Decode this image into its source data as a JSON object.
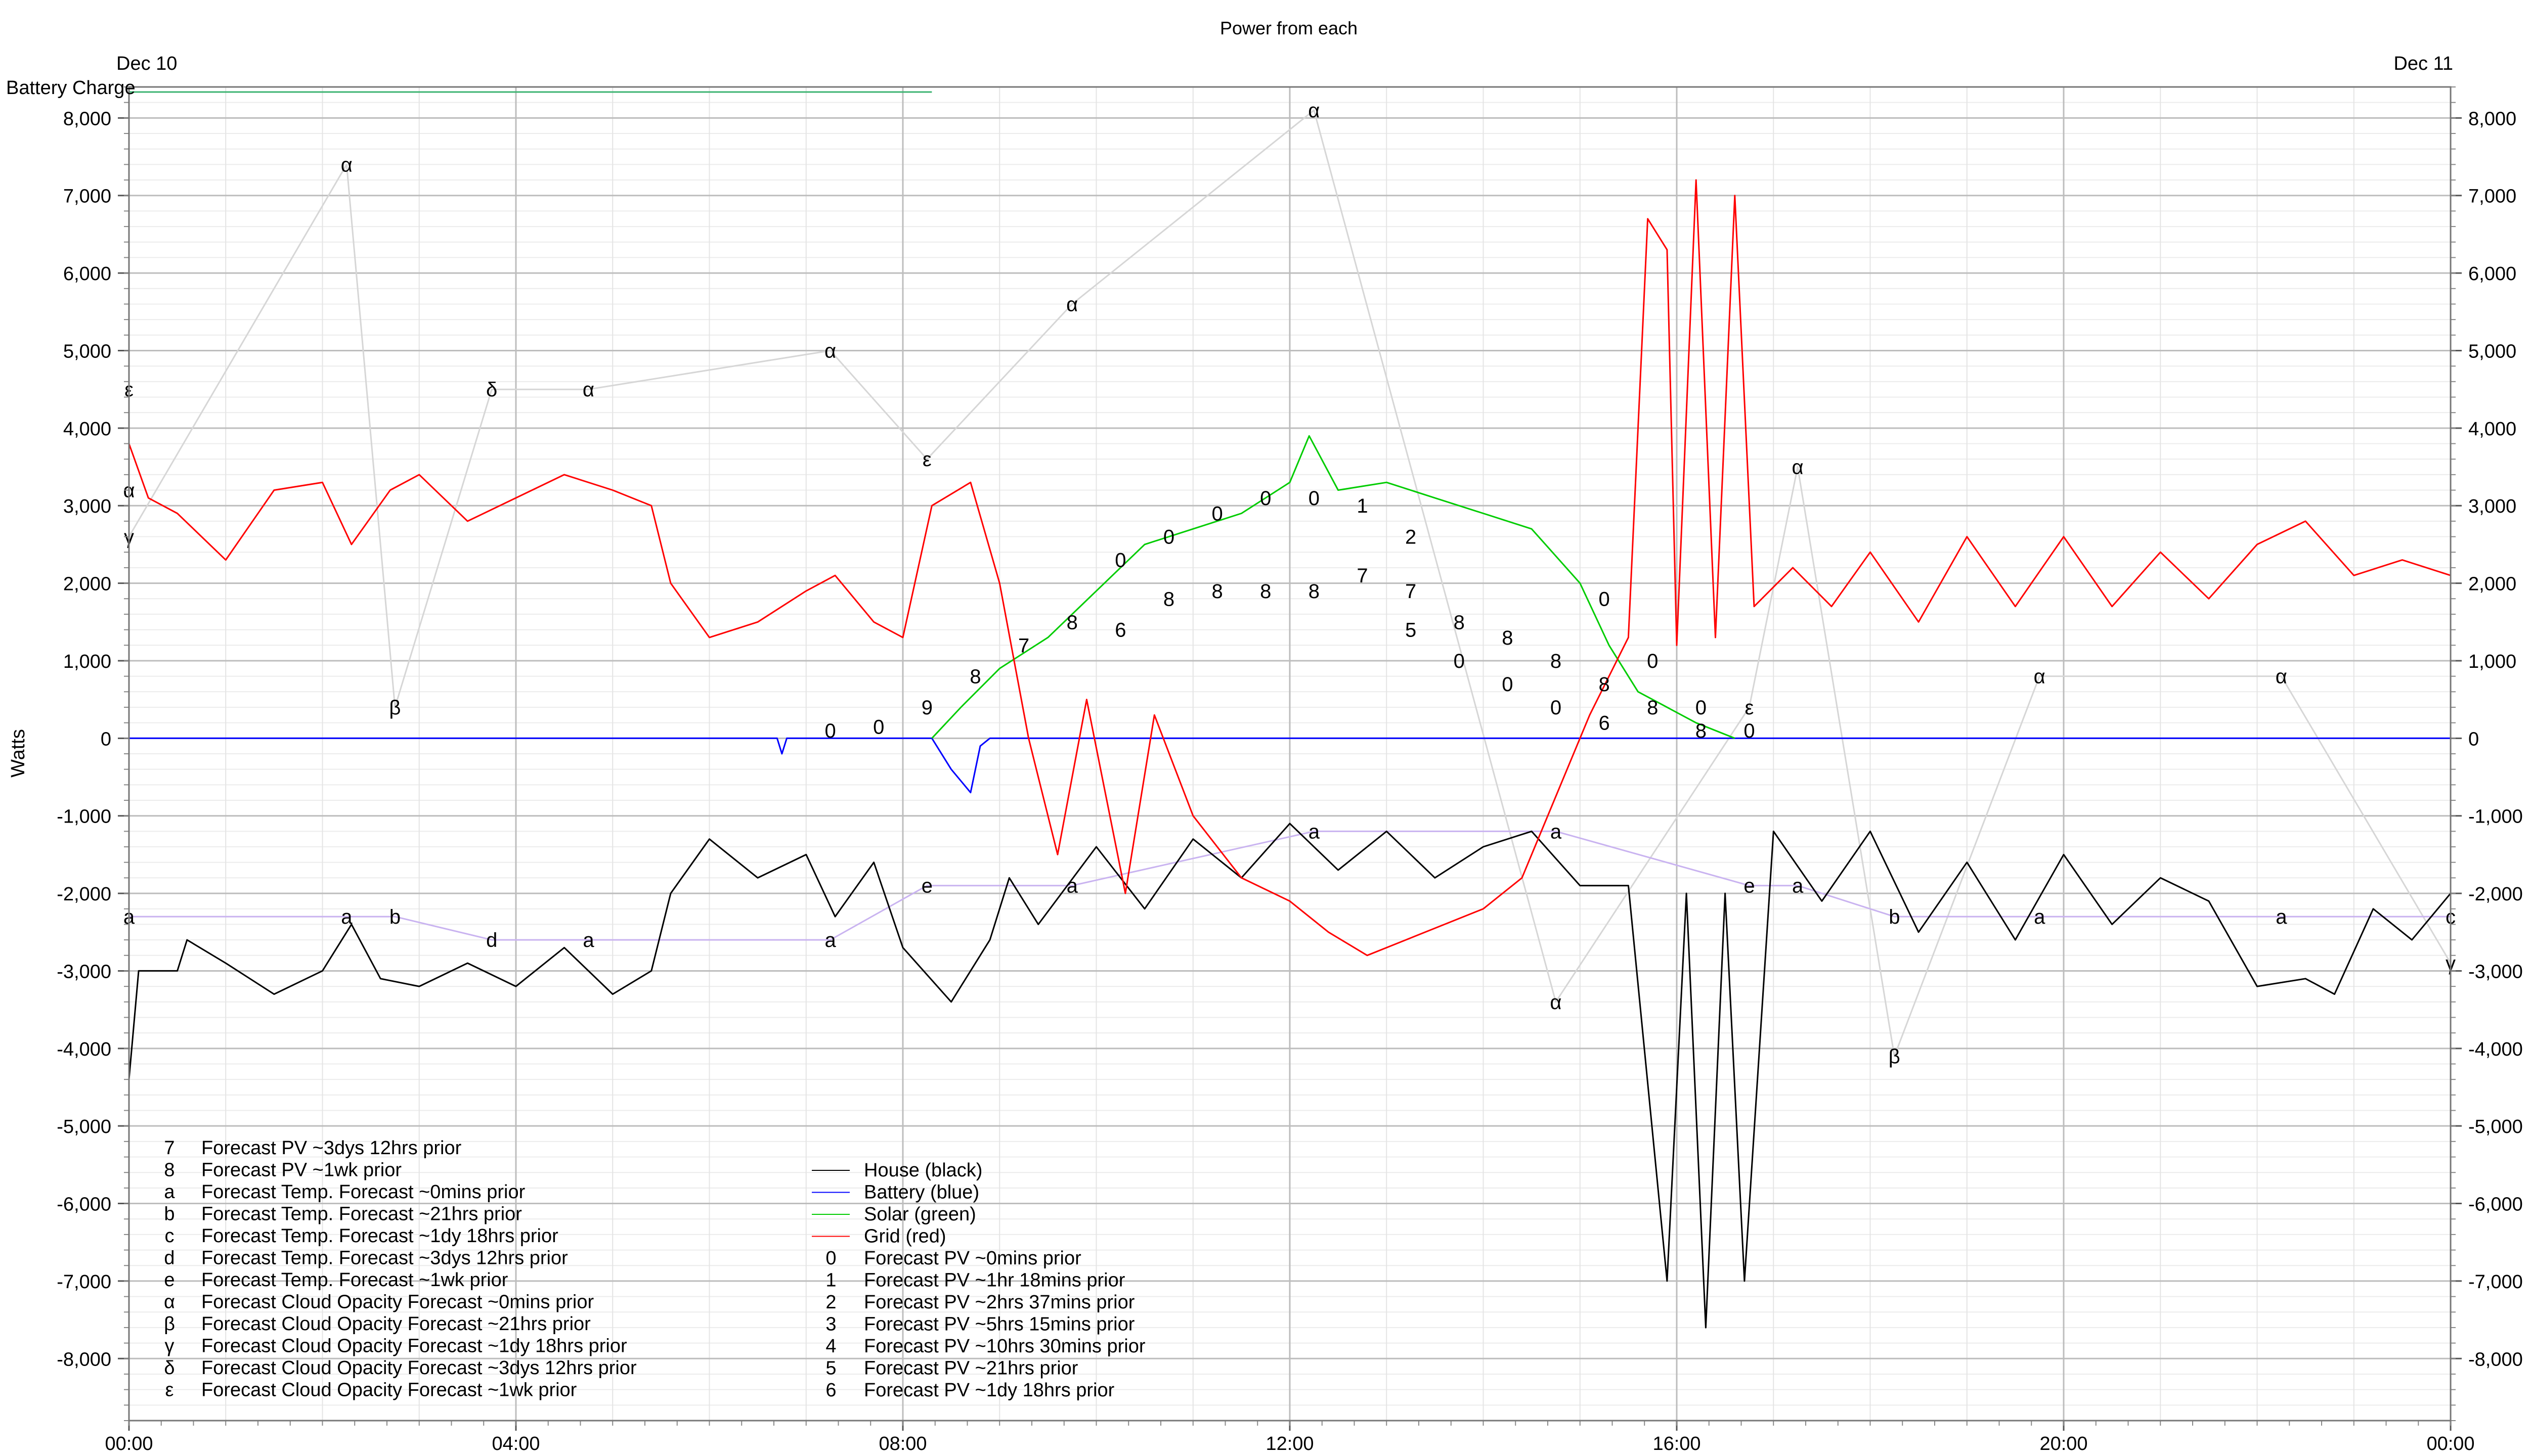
{
  "chart_data": {
    "type": "line",
    "title": "Power from each",
    "top_left_label": "Dec 10",
    "top_right_label": "Dec 11",
    "battery_label": "Battery Charge",
    "ylabel": "Watts",
    "ylim": [
      -8800,
      8400
    ],
    "xlim": [
      0,
      24
    ],
    "y_ticks": [
      8000,
      7000,
      6000,
      5000,
      4000,
      3000,
      2000,
      1000,
      0,
      -1000,
      -2000,
      -3000,
      -4000,
      -5000,
      -6000,
      -7000,
      -8000
    ],
    "y_tick_labels": [
      "8,000",
      "7,000",
      "6,000",
      "5,000",
      "4,000",
      "3,000",
      "2,000",
      "1,000",
      "0",
      "-1,000",
      "-2,000",
      "-3,000",
      "-4,000",
      "-5,000",
      "-6,000",
      "-7,000",
      "-8,000"
    ],
    "x_ticks": [
      0,
      4,
      8,
      12,
      16,
      20,
      24
    ],
    "x_tick_labels": [
      "00:00",
      "04:00",
      "08:00",
      "12:00",
      "16:00",
      "20:00",
      "00:00"
    ],
    "grid": true,
    "series": [
      {
        "name": "House (black)",
        "color": "#000000",
        "points": [
          [
            0,
            -4400
          ],
          [
            0.1,
            -3000
          ],
          [
            0.5,
            -3000
          ],
          [
            0.6,
            -2600
          ],
          [
            1.0,
            -2900
          ],
          [
            1.5,
            -3300
          ],
          [
            2.0,
            -3000
          ],
          [
            2.3,
            -2400
          ],
          [
            2.6,
            -3100
          ],
          [
            3.0,
            -3200
          ],
          [
            3.5,
            -2900
          ],
          [
            4.0,
            -3200
          ],
          [
            4.5,
            -2700
          ],
          [
            5.0,
            -3300
          ],
          [
            5.4,
            -3000
          ],
          [
            5.6,
            -2000
          ],
          [
            6.0,
            -1300
          ],
          [
            6.5,
            -1800
          ],
          [
            7.0,
            -1500
          ],
          [
            7.3,
            -2300
          ],
          [
            7.7,
            -1600
          ],
          [
            8.0,
            -2700
          ],
          [
            8.5,
            -3400
          ],
          [
            8.9,
            -2600
          ],
          [
            9.1,
            -1800
          ],
          [
            9.4,
            -2400
          ],
          [
            10.0,
            -1400
          ],
          [
            10.5,
            -2200
          ],
          [
            11.0,
            -1300
          ],
          [
            11.5,
            -1800
          ],
          [
            12.0,
            -1100
          ],
          [
            12.5,
            -1700
          ],
          [
            13.0,
            -1200
          ],
          [
            13.5,
            -1800
          ],
          [
            14.0,
            -1400
          ],
          [
            14.5,
            -1200
          ],
          [
            15.0,
            -1900
          ],
          [
            15.5,
            -1900
          ],
          [
            15.9,
            -7000
          ],
          [
            16.1,
            -2000
          ],
          [
            16.3,
            -7600
          ],
          [
            16.5,
            -2000
          ],
          [
            16.7,
            -7000
          ],
          [
            17.0,
            -1200
          ],
          [
            17.5,
            -2100
          ],
          [
            18.0,
            -1200
          ],
          [
            18.5,
            -2500
          ],
          [
            19.0,
            -1600
          ],
          [
            19.5,
            -2600
          ],
          [
            20.0,
            -1500
          ],
          [
            20.5,
            -2400
          ],
          [
            21.0,
            -1800
          ],
          [
            21.5,
            -2100
          ],
          [
            22.0,
            -3200
          ],
          [
            22.5,
            -3100
          ],
          [
            22.8,
            -3300
          ],
          [
            23.2,
            -2200
          ],
          [
            23.6,
            -2600
          ],
          [
            24.0,
            -2000
          ]
        ]
      },
      {
        "name": "Battery (blue)",
        "color": "#0000ff",
        "points": [
          [
            0,
            0
          ],
          [
            6.7,
            0
          ],
          [
            6.75,
            -200
          ],
          [
            6.8,
            0
          ],
          [
            8.3,
            0
          ],
          [
            8.5,
            -400
          ],
          [
            8.7,
            -700
          ],
          [
            8.8,
            -100
          ],
          [
            8.9,
            0
          ],
          [
            24,
            0
          ]
        ]
      },
      {
        "name": "Solar (green)",
        "color": "#00cc00",
        "points": [
          [
            8.3,
            0
          ],
          [
            8.6,
            400
          ],
          [
            9.0,
            900
          ],
          [
            9.5,
            1300
          ],
          [
            10.0,
            1900
          ],
          [
            10.5,
            2500
          ],
          [
            11.0,
            2700
          ],
          [
            11.5,
            2900
          ],
          [
            12.0,
            3300
          ],
          [
            12.2,
            3900
          ],
          [
            12.5,
            3200
          ],
          [
            13.0,
            3300
          ],
          [
            13.5,
            3100
          ],
          [
            14.0,
            2900
          ],
          [
            14.5,
            2700
          ],
          [
            15.0,
            2000
          ],
          [
            15.3,
            1200
          ],
          [
            15.6,
            600
          ],
          [
            15.9,
            400
          ],
          [
            16.2,
            200
          ],
          [
            16.6,
            0
          ]
        ]
      },
      {
        "name": "Grid (red)",
        "color": "#ff0000",
        "points": [
          [
            0,
            3800
          ],
          [
            0.2,
            3100
          ],
          [
            0.5,
            2900
          ],
          [
            1.0,
            2300
          ],
          [
            1.5,
            3200
          ],
          [
            2.0,
            3300
          ],
          [
            2.3,
            2500
          ],
          [
            2.7,
            3200
          ],
          [
            3.0,
            3400
          ],
          [
            3.5,
            2800
          ],
          [
            4.0,
            3100
          ],
          [
            4.5,
            3400
          ],
          [
            5.0,
            3200
          ],
          [
            5.4,
            3000
          ],
          [
            5.6,
            2000
          ],
          [
            6.0,
            1300
          ],
          [
            6.5,
            1500
          ],
          [
            7.0,
            1900
          ],
          [
            7.3,
            2100
          ],
          [
            7.7,
            1500
          ],
          [
            8.0,
            1300
          ],
          [
            8.3,
            3000
          ],
          [
            8.7,
            3300
          ],
          [
            9.0,
            2000
          ],
          [
            9.3,
            0
          ],
          [
            9.6,
            -1500
          ],
          [
            9.9,
            500
          ],
          [
            10.3,
            -2000
          ],
          [
            10.6,
            300
          ],
          [
            11.0,
            -1000
          ],
          [
            11.5,
            -1800
          ],
          [
            12.0,
            -2100
          ],
          [
            12.4,
            -2500
          ],
          [
            12.8,
            -2800
          ],
          [
            13.2,
            -2600
          ],
          [
            13.6,
            -2400
          ],
          [
            14.0,
            -2200
          ],
          [
            14.4,
            -1800
          ],
          [
            14.8,
            -600
          ],
          [
            15.1,
            300
          ],
          [
            15.5,
            1300
          ],
          [
            15.7,
            6700
          ],
          [
            15.9,
            6300
          ],
          [
            16.0,
            1200
          ],
          [
            16.2,
            7200
          ],
          [
            16.4,
            1300
          ],
          [
            16.6,
            7000
          ],
          [
            16.8,
            1700
          ],
          [
            17.2,
            2200
          ],
          [
            17.6,
            1700
          ],
          [
            18.0,
            2400
          ],
          [
            18.5,
            1500
          ],
          [
            19.0,
            2600
          ],
          [
            19.5,
            1700
          ],
          [
            20.0,
            2600
          ],
          [
            20.5,
            1700
          ],
          [
            21.0,
            2400
          ],
          [
            21.5,
            1800
          ],
          [
            22.0,
            2500
          ],
          [
            22.5,
            2800
          ],
          [
            23.0,
            2100
          ],
          [
            23.5,
            2300
          ],
          [
            24.0,
            2100
          ]
        ]
      }
    ],
    "forecast_markers": [
      {
        "label": "ε",
        "x": 0.0,
        "y": 4500
      },
      {
        "label": "α",
        "x": 0.0,
        "y": 3200
      },
      {
        "label": "γ",
        "x": 0.0,
        "y": 2600
      },
      {
        "label": "α",
        "x": 2.25,
        "y": 7400
      },
      {
        "label": "β",
        "x": 2.75,
        "y": 400
      },
      {
        "label": "δ",
        "x": 3.75,
        "y": 4500
      },
      {
        "label": "α",
        "x": 4.75,
        "y": 4500
      },
      {
        "label": "α",
        "x": 7.25,
        "y": 5000
      },
      {
        "label": "ε",
        "x": 8.25,
        "y": 3600
      },
      {
        "label": "α",
        "x": 9.75,
        "y": 5600
      },
      {
        "label": "α",
        "x": 12.25,
        "y": 8100
      },
      {
        "label": "α",
        "x": 17.25,
        "y": 3500
      },
      {
        "label": "α",
        "x": 19.75,
        "y": 800
      },
      {
        "label": "α",
        "x": 22.25,
        "y": 800
      },
      {
        "label": "α",
        "x": 14.75,
        "y": -3400
      },
      {
        "label": "β",
        "x": 18.25,
        "y": -4100
      },
      {
        "label": "γ",
        "x": 24.0,
        "y": -2900
      },
      {
        "label": "ε",
        "x": 16.75,
        "y": 400
      },
      {
        "label": "a",
        "x": 0.0,
        "y": -2300
      },
      {
        "label": "a",
        "x": 2.25,
        "y": -2300
      },
      {
        "label": "b",
        "x": 2.75,
        "y": -2300
      },
      {
        "label": "d",
        "x": 3.75,
        "y": -2600
      },
      {
        "label": "a",
        "x": 4.75,
        "y": -2600
      },
      {
        "label": "a",
        "x": 7.25,
        "y": -2600
      },
      {
        "label": "e",
        "x": 8.25,
        "y": -1900
      },
      {
        "label": "a",
        "x": 9.75,
        "y": -1900
      },
      {
        "label": "a",
        "x": 12.25,
        "y": -1200
      },
      {
        "label": "a",
        "x": 14.75,
        "y": -1200
      },
      {
        "label": "e",
        "x": 16.75,
        "y": -1900
      },
      {
        "label": "a",
        "x": 17.25,
        "y": -1900
      },
      {
        "label": "b",
        "x": 18.25,
        "y": -2300
      },
      {
        "label": "a",
        "x": 19.75,
        "y": -2300
      },
      {
        "label": "a",
        "x": 22.25,
        "y": -2300
      },
      {
        "label": "c",
        "x": 24.0,
        "y": -2300
      },
      {
        "label": "0",
        "x": 7.25,
        "y": 100
      },
      {
        "label": "0",
        "x": 7.75,
        "y": 150
      },
      {
        "label": "9",
        "x": 8.25,
        "y": 400
      },
      {
        "label": "8",
        "x": 8.75,
        "y": 800
      },
      {
        "label": "7",
        "x": 9.25,
        "y": 1200
      },
      {
        "label": "8",
        "x": 9.75,
        "y": 1500
      },
      {
        "label": "0",
        "x": 10.25,
        "y": 2300
      },
      {
        "label": "6",
        "x": 10.25,
        "y": 1400
      },
      {
        "label": "0",
        "x": 10.75,
        "y": 2600
      },
      {
        "label": "8",
        "x": 10.75,
        "y": 1800
      },
      {
        "label": "0",
        "x": 11.25,
        "y": 2900
      },
      {
        "label": "8",
        "x": 11.25,
        "y": 1900
      },
      {
        "label": "0",
        "x": 11.75,
        "y": 3100
      },
      {
        "label": "8",
        "x": 11.75,
        "y": 1900
      },
      {
        "label": "0",
        "x": 12.25,
        "y": 3100
      },
      {
        "label": "8",
        "x": 12.25,
        "y": 1900
      },
      {
        "label": "1",
        "x": 12.75,
        "y": 3000
      },
      {
        "label": "7",
        "x": 12.75,
        "y": 2100
      },
      {
        "label": "2",
        "x": 13.25,
        "y": 2600
      },
      {
        "label": "7",
        "x": 13.25,
        "y": 1900
      },
      {
        "label": "5",
        "x": 13.25,
        "y": 1400
      },
      {
        "label": "8",
        "x": 13.75,
        "y": 1500
      },
      {
        "label": "0",
        "x": 13.75,
        "y": 1000
      },
      {
        "label": "8",
        "x": 14.25,
        "y": 1300
      },
      {
        "label": "0",
        "x": 14.25,
        "y": 700
      },
      {
        "label": "8",
        "x": 14.75,
        "y": 1000
      },
      {
        "label": "0",
        "x": 14.75,
        "y": 400
      },
      {
        "label": "0",
        "x": 15.25,
        "y": 1800
      },
      {
        "label": "8",
        "x": 15.25,
        "y": 700
      },
      {
        "label": "6",
        "x": 15.25,
        "y": 200
      },
      {
        "label": "0",
        "x": 15.75,
        "y": 1000
      },
      {
        "label": "8",
        "x": 15.75,
        "y": 400
      },
      {
        "label": "0",
        "x": 16.25,
        "y": 400
      },
      {
        "label": "8",
        "x": 16.25,
        "y": 100
      },
      {
        "label": "0",
        "x": 16.75,
        "y": 100
      }
    ],
    "legend": {
      "column1": [
        {
          "symbol": "7",
          "label": "Forecast PV ~3dys 12hrs prior"
        },
        {
          "symbol": "8",
          "label": "Forecast PV ~1wk prior"
        },
        {
          "symbol": "a",
          "label": "Forecast Temp. Forecast ~0mins prior"
        },
        {
          "symbol": "b",
          "label": "Forecast Temp. Forecast ~21hrs prior"
        },
        {
          "symbol": "c",
          "label": "Forecast Temp. Forecast ~1dy 18hrs prior"
        },
        {
          "symbol": "d",
          "label": "Forecast Temp. Forecast ~3dys 12hrs prior"
        },
        {
          "symbol": "e",
          "label": "Forecast Temp. Forecast ~1wk prior"
        },
        {
          "symbol": "α",
          "label": "Forecast Cloud Opacity Forecast ~0mins prior"
        },
        {
          "symbol": "β",
          "label": "Forecast Cloud Opacity Forecast ~21hrs prior"
        },
        {
          "symbol": "γ",
          "label": "Forecast Cloud Opacity Forecast ~1dy 18hrs prior"
        },
        {
          "symbol": "δ",
          "label": "Forecast Cloud Opacity Forecast ~3dys 12hrs prior"
        },
        {
          "symbol": "ε",
          "label": "Forecast Cloud Opacity Forecast ~1wk prior"
        }
      ],
      "column2": [
        {
          "symbol": "",
          "line_color": "#000000",
          "label": "House (black)"
        },
        {
          "symbol": "",
          "line_color": "#0000ff",
          "label": "Battery (blue)"
        },
        {
          "symbol": "",
          "line_color": "#00cc00",
          "label": "Solar (green)"
        },
        {
          "symbol": "",
          "line_color": "#ff0000",
          "label": "Grid (red)"
        },
        {
          "symbol": "0",
          "label": "Forecast PV ~0mins prior"
        },
        {
          "symbol": "1",
          "label": "Forecast PV ~1hr 18mins prior"
        },
        {
          "symbol": "2",
          "label": "Forecast PV ~2hrs 37mins prior"
        },
        {
          "symbol": "3",
          "label": "Forecast PV ~5hrs 15mins prior"
        },
        {
          "symbol": "4",
          "label": "Forecast PV ~10hrs 30mins prior"
        },
        {
          "symbol": "5",
          "label": "Forecast PV ~21hrs prior"
        },
        {
          "symbol": "6",
          "label": "Forecast PV ~1dy 18hrs prior"
        }
      ]
    }
  }
}
